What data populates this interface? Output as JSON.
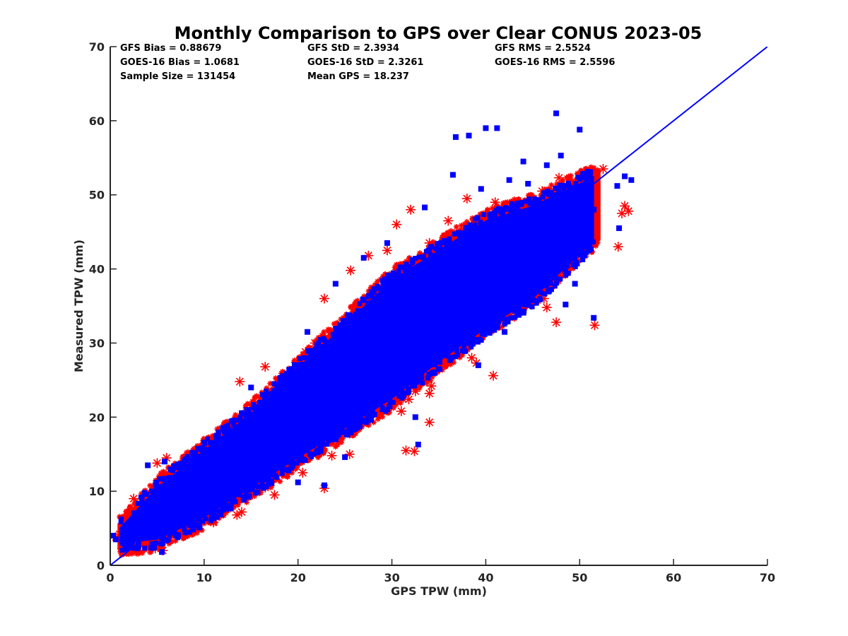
{
  "chart_data": {
    "type": "scatter",
    "title": "Monthly Comparison to GPS over Clear CONUS 2023-05",
    "xlabel": "GPS TPW (mm)",
    "ylabel": "Measured TPW (mm)",
    "xlim": [
      0,
      70
    ],
    "ylim": [
      0,
      70
    ],
    "x_ticks": [
      "0",
      "10",
      "20",
      "30",
      "40",
      "50",
      "60",
      "70"
    ],
    "y_ticks": [
      "0",
      "10",
      "20",
      "30",
      "40",
      "50",
      "60",
      "70"
    ],
    "grid": false,
    "colors": {
      "gfs": "#ff0000",
      "goes16": "#0000ff",
      "reference_line": "#0000ff",
      "axes": "#262626"
    },
    "stats": [
      {
        "text": "GFS Bias = 0.88679"
      },
      {
        "text": "GFS StD = 2.3934"
      },
      {
        "text": "GFS RMS = 2.5524"
      },
      {
        "text": "GOES-16 Bias = 1.0681"
      },
      {
        "text": "GOES-16 StD = 2.3261"
      },
      {
        "text": "GOES-16 RMS = 2.5596"
      },
      {
        "text": "Sample Size = 131454"
      },
      {
        "text": "Mean GPS = 18.237"
      }
    ],
    "reference_line": {
      "x": [
        0,
        70
      ],
      "y": [
        0,
        70
      ]
    },
    "series": [
      {
        "marker": "asterisk",
        "color": "#ff0000",
        "density_band": {
          "x": [
            1,
            5,
            10,
            15,
            20,
            25,
            30,
            35,
            40,
            45,
            50,
            52
          ],
          "y_low": [
            2.5,
            3,
            6,
            10,
            14,
            18,
            22,
            27,
            32,
            36,
            42,
            44
          ],
          "y_high": [
            5.5,
            11,
            16,
            21,
            27,
            33,
            39,
            43,
            47,
            49,
            52,
            53
          ]
        },
        "outliers": [
          [
            52.5,
            53.5
          ],
          [
            54.8,
            48.5
          ],
          [
            55.2,
            47.8
          ],
          [
            54.5,
            47.5
          ],
          [
            54.1,
            43.0
          ],
          [
            51.6,
            32.4
          ],
          [
            47.5,
            32.8
          ],
          [
            46.5,
            34.8
          ],
          [
            46.2,
            36.0
          ],
          [
            40.8,
            25.6
          ],
          [
            39.0,
            27.3
          ],
          [
            38.5,
            28.0
          ],
          [
            34.2,
            24.2
          ],
          [
            34.0,
            23.2
          ],
          [
            32.5,
            23.5
          ],
          [
            31.8,
            22.4
          ],
          [
            29.5,
            21.1
          ],
          [
            28.0,
            21.0
          ],
          [
            31.0,
            20.8
          ],
          [
            34.0,
            19.3
          ],
          [
            32.4,
            15.4
          ],
          [
            31.5,
            15.5
          ],
          [
            25.5,
            15.0
          ],
          [
            23.6,
            14.8
          ],
          [
            22.8,
            10.4
          ],
          [
            20.5,
            12.5
          ],
          [
            17.5,
            9.5
          ],
          [
            16.5,
            10.5
          ],
          [
            14.0,
            7.2
          ],
          [
            13.5,
            6.8
          ],
          [
            11.0,
            5.8
          ],
          [
            5.6,
            2.0
          ],
          [
            4.8,
            2.3
          ],
          [
            0.6,
            3.8
          ],
          [
            1.0,
            4.2
          ],
          [
            2.5,
            9.0
          ],
          [
            5.0,
            13.8
          ],
          [
            6.0,
            14.5
          ],
          [
            13.8,
            24.8
          ],
          [
            16.5,
            26.8
          ],
          [
            20.8,
            28.8
          ],
          [
            21.8,
            30.0
          ],
          [
            22.8,
            36.0
          ],
          [
            25.6,
            39.8
          ],
          [
            27.5,
            41.8
          ],
          [
            29.5,
            42.5
          ],
          [
            30.5,
            46.0
          ],
          [
            32.0,
            48.0
          ],
          [
            34.0,
            43.5
          ],
          [
            36.0,
            46.5
          ],
          [
            38.0,
            49.5
          ],
          [
            41.0,
            49.0
          ],
          [
            44.0,
            48.5
          ],
          [
            46.0,
            50.5
          ],
          [
            47.8,
            52.3
          ],
          [
            50.0,
            51.5
          ],
          [
            51.0,
            46.5
          ]
        ]
      },
      {
        "marker": "square",
        "color": "#0000ff",
        "density_band": {
          "x": [
            1,
            5,
            10,
            15,
            20,
            25,
            30,
            35,
            40,
            45,
            50,
            51.5
          ],
          "y_low": [
            3,
            3.5,
            6.5,
            10.5,
            14.5,
            18.5,
            22.5,
            27.5,
            32,
            36,
            42,
            44
          ],
          "y_high": [
            5,
            10.5,
            15.5,
            20.5,
            26.5,
            32.5,
            38.5,
            42.5,
            46.5,
            48.5,
            51.5,
            52.5
          ]
        },
        "outliers": [
          [
            47.5,
            61.0
          ],
          [
            50.0,
            58.8
          ],
          [
            41.2,
            59.0
          ],
          [
            40.0,
            59.0
          ],
          [
            38.2,
            58.0
          ],
          [
            36.8,
            57.8
          ],
          [
            44.0,
            54.5
          ],
          [
            46.5,
            54.0
          ],
          [
            48.0,
            55.3
          ],
          [
            54.8,
            52.5
          ],
          [
            55.5,
            52.0
          ],
          [
            54.0,
            51.2
          ],
          [
            51.5,
            48.0
          ],
          [
            54.2,
            45.5
          ],
          [
            51.0,
            44.5
          ],
          [
            51.5,
            33.4
          ],
          [
            48.5,
            35.2
          ],
          [
            43.5,
            33.8
          ],
          [
            39.2,
            27.0
          ],
          [
            32.8,
            16.3
          ],
          [
            32.5,
            20.0
          ],
          [
            25.0,
            14.6
          ],
          [
            22.8,
            10.8
          ],
          [
            20.0,
            11.2
          ],
          [
            36.5,
            52.7
          ],
          [
            33.5,
            48.3
          ],
          [
            24.0,
            38.0
          ],
          [
            27.0,
            41.5
          ],
          [
            29.5,
            43.5
          ],
          [
            5.8,
            14.0
          ],
          [
            5.5,
            1.8
          ],
          [
            0.3,
            4.0
          ],
          [
            0.6,
            3.5
          ],
          [
            4.0,
            13.5
          ],
          [
            15.0,
            24.0
          ],
          [
            21.0,
            31.5
          ],
          [
            46.0,
            44.5
          ],
          [
            49.0,
            47.5
          ],
          [
            49.5,
            38.0
          ],
          [
            45.0,
            39.0
          ],
          [
            42.0,
            31.5
          ],
          [
            38.0,
            30.0
          ],
          [
            35.0,
            26.5
          ],
          [
            30.0,
            24.0
          ],
          [
            27.5,
            22.0
          ],
          [
            26.0,
            18.5
          ],
          [
            24.0,
            17.0
          ],
          [
            19.0,
            12.8
          ],
          [
            15.5,
            9.8
          ],
          [
            12.0,
            7.5
          ],
          [
            9.0,
            5.5
          ],
          [
            7.0,
            4.0
          ],
          [
            3.0,
            2.8
          ],
          [
            2.0,
            3.5
          ],
          [
            42.5,
            52.0
          ],
          [
            44.5,
            51.5
          ],
          [
            39.5,
            50.8
          ],
          [
            50.5,
            50.0
          ]
        ]
      }
    ]
  }
}
